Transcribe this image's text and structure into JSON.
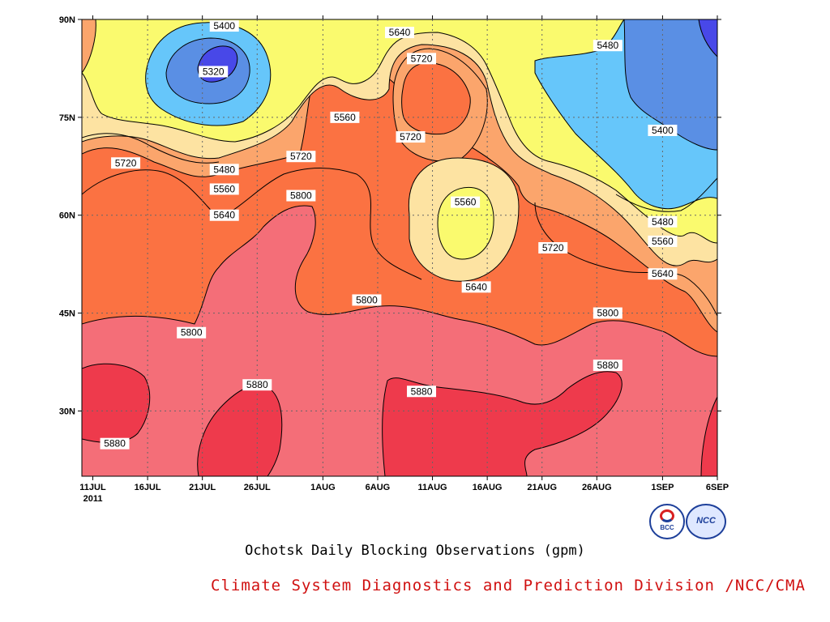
{
  "colors": {
    "5320": "#4848e8",
    "5400": "#5a8fe4",
    "5480": "#66c6fa",
    "5560": "#fafa6e",
    "5640": "#fde3a2",
    "5720": "#fba56c",
    "5800": "#fb7242",
    "5880": "#f46e78",
    "5960": "#ee3a4c"
  },
  "chart_data": {
    "type": "contour",
    "title": "Ochotsk Daily Blocking Observations (gpm)",
    "x_ticks": [
      "11JUL",
      "16JUL",
      "21JUL",
      "26JUL",
      "1AUG",
      "6AUG",
      "11AUG",
      "16AUG",
      "21AUG",
      "26AUG",
      "1SEP",
      "6SEP"
    ],
    "x_year": "2011",
    "y_ticks": [
      "30N",
      "45N",
      "60N",
      "75N",
      "90N"
    ],
    "x_range": [
      "2011-07-10",
      "2011-09-06"
    ],
    "y_range": [
      20,
      90
    ],
    "contour_levels": [
      5320,
      5400,
      5480,
      5560,
      5640,
      5720,
      5800,
      5880
    ],
    "contour_labels": [
      {
        "text": "5400",
        "date": "2011-07-23",
        "lat": 89
      },
      {
        "text": "5320",
        "date": "2011-07-22",
        "lat": 82
      },
      {
        "text": "5480",
        "date": "2011-07-23",
        "lat": 67
      },
      {
        "text": "5560",
        "date": "2011-07-23",
        "lat": 64
      },
      {
        "text": "5640",
        "date": "2011-07-23",
        "lat": 60
      },
      {
        "text": "5720",
        "date": "2011-07-14",
        "lat": 68
      },
      {
        "text": "5720",
        "date": "2011-07-30",
        "lat": 69
      },
      {
        "text": "5560",
        "date": "2011-08-03",
        "lat": 75
      },
      {
        "text": "5800",
        "date": "2011-07-30",
        "lat": 63
      },
      {
        "text": "5640",
        "date": "2011-08-08",
        "lat": 88
      },
      {
        "text": "5720",
        "date": "2011-08-10",
        "lat": 84
      },
      {
        "text": "5720",
        "date": "2011-08-09",
        "lat": 72
      },
      {
        "text": "5480",
        "date": "2011-08-27",
        "lat": 86
      },
      {
        "text": "5400",
        "date": "2011-09-01",
        "lat": 73
      },
      {
        "text": "5560",
        "date": "2011-08-14",
        "lat": 62
      },
      {
        "text": "5640",
        "date": "2011-08-15",
        "lat": 49
      },
      {
        "text": "5720",
        "date": "2011-08-22",
        "lat": 55
      },
      {
        "text": "5480",
        "date": "2011-09-01",
        "lat": 59
      },
      {
        "text": "5560",
        "date": "2011-09-01",
        "lat": 56
      },
      {
        "text": "5640",
        "date": "2011-09-01",
        "lat": 51
      },
      {
        "text": "5800",
        "date": "2011-08-05",
        "lat": 47
      },
      {
        "text": "5800",
        "date": "2011-07-20",
        "lat": 42
      },
      {
        "text": "5800",
        "date": "2011-08-27",
        "lat": 45
      },
      {
        "text": "5880",
        "date": "2011-07-26",
        "lat": 34
      },
      {
        "text": "5880",
        "date": "2011-08-10",
        "lat": 33
      },
      {
        "text": "5880",
        "date": "2011-08-27",
        "lat": 37
      },
      {
        "text": "5880",
        "date": "2011-07-13",
        "lat": 25
      }
    ]
  },
  "credit": "Climate System Diagnostics and Prediction Division /NCC/CMA",
  "logos": {
    "left": "BCC",
    "right": "NCC"
  }
}
